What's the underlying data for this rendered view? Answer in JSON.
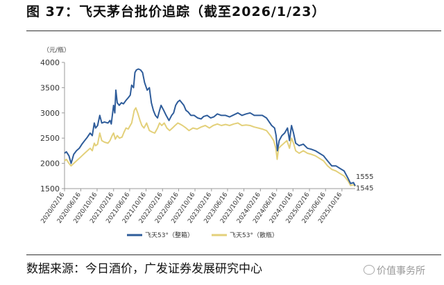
{
  "figure": {
    "title": "图  37：飞天茅台批价追踪（截至2026/1/23）",
    "source": "数据来源：今日酒价，广发证券发展研究中心",
    "watermark": "价值事务所"
  },
  "chart_data": {
    "type": "line",
    "title": "",
    "unit_label": "（元/瓶）",
    "xlabel": "",
    "ylabel": "",
    "ylim": [
      1500,
      4000
    ],
    "yticks": [
      1500,
      2000,
      2500,
      3000,
      3500,
      4000
    ],
    "xlim": [
      "2020-02-16",
      "2026-01-23"
    ],
    "x_tick_dates": [
      "2020-02-16",
      "2020-06-16",
      "2020-10-16",
      "2021-02-16",
      "2021-06-16",
      "2021-10-16",
      "2022-02-16",
      "2022-06-16",
      "2022-10-16",
      "2023-02-16",
      "2023-06-16",
      "2023-10-16",
      "2024-02-16",
      "2024-06-16",
      "2024-10-16",
      "2025-02-16",
      "2025-06-16",
      "2025-10-16"
    ],
    "x_tick_labels": [
      "2020/02/16",
      "2020/06/16",
      "2020/10/16",
      "2021/02/16",
      "2021/06/16",
      "2021/10/16",
      "2022/02/16",
      "2022/06/16",
      "2022/10/16",
      "2023/02/16",
      "2023/06/16",
      "2023/10/16",
      "2024/02/16",
      "2024/06/16",
      "2024/10/16",
      "2025/02/16",
      "2025/06/16",
      "2025/10/16"
    ],
    "legend_position": "bottom",
    "grid": false,
    "series": [
      {
        "name": "飞天53°（整箱）",
        "color": "#2E5C9A",
        "end_label": "1555",
        "points": [
          [
            "2020-02-16",
            2200
          ],
          [
            "2020-03-01",
            2230
          ],
          [
            "2020-03-20",
            2150
          ],
          [
            "2020-04-05",
            2000
          ],
          [
            "2020-04-25",
            2180
          ],
          [
            "2020-05-15",
            2250
          ],
          [
            "2020-06-05",
            2300
          ],
          [
            "2020-06-25",
            2380
          ],
          [
            "2020-07-15",
            2450
          ],
          [
            "2020-08-05",
            2520
          ],
          [
            "2020-08-25",
            2600
          ],
          [
            "2020-09-10",
            2550
          ],
          [
            "2020-09-25",
            2800
          ],
          [
            "2020-10-05",
            2700
          ],
          [
            "2020-10-20",
            2750
          ],
          [
            "2020-11-05",
            2950
          ],
          [
            "2020-11-20",
            2800
          ],
          [
            "2020-12-10",
            2820
          ],
          [
            "2021-01-05",
            2800
          ],
          [
            "2021-01-20",
            2850
          ],
          [
            "2021-01-30",
            2780
          ],
          [
            "2021-02-16",
            3150
          ],
          [
            "2021-02-25",
            3000
          ],
          [
            "2021-03-05",
            3450
          ],
          [
            "2021-03-15",
            3200
          ],
          [
            "2021-03-30",
            3150
          ],
          [
            "2021-04-15",
            3200
          ],
          [
            "2021-05-01",
            3180
          ],
          [
            "2021-05-20",
            3250
          ],
          [
            "2021-06-05",
            3300
          ],
          [
            "2021-06-20",
            3350
          ],
          [
            "2021-07-01",
            3550
          ],
          [
            "2021-07-15",
            3500
          ],
          [
            "2021-07-25",
            3800
          ],
          [
            "2021-08-05",
            3850
          ],
          [
            "2021-08-20",
            3870
          ],
          [
            "2021-09-05",
            3850
          ],
          [
            "2021-09-20",
            3800
          ],
          [
            "2021-10-05",
            3600
          ],
          [
            "2021-10-25",
            3450
          ],
          [
            "2021-11-10",
            3500
          ],
          [
            "2021-11-25",
            3200
          ],
          [
            "2021-12-10",
            3050
          ],
          [
            "2021-12-25",
            2950
          ],
          [
            "2022-01-10",
            2900
          ],
          [
            "2022-01-25",
            3050
          ],
          [
            "2022-02-05",
            3150
          ],
          [
            "2022-02-25",
            3050
          ],
          [
            "2022-03-15",
            2950
          ],
          [
            "2022-04-05",
            2850
          ],
          [
            "2022-04-25",
            2950
          ],
          [
            "2022-05-10",
            3000
          ],
          [
            "2022-05-25",
            3150
          ],
          [
            "2022-06-10",
            3220
          ],
          [
            "2022-06-25",
            3250
          ],
          [
            "2022-07-10",
            3200
          ],
          [
            "2022-07-25",
            3150
          ],
          [
            "2022-08-10",
            3050
          ],
          [
            "2022-08-25",
            3020
          ],
          [
            "2022-09-15",
            2950
          ],
          [
            "2022-10-10",
            2950
          ],
          [
            "2022-11-05",
            2900
          ],
          [
            "2022-12-01",
            2880
          ],
          [
            "2022-12-20",
            2930
          ],
          [
            "2023-01-15",
            2950
          ],
          [
            "2023-02-10",
            2900
          ],
          [
            "2023-03-05",
            2920
          ],
          [
            "2023-04-01",
            2980
          ],
          [
            "2023-05-01",
            2950
          ],
          [
            "2023-06-01",
            2950
          ],
          [
            "2023-07-01",
            2920
          ],
          [
            "2023-08-01",
            2960
          ],
          [
            "2023-09-01",
            3000
          ],
          [
            "2023-10-01",
            2950
          ],
          [
            "2023-11-01",
            2980
          ],
          [
            "2023-12-01",
            3000
          ],
          [
            "2024-01-01",
            2950
          ],
          [
            "2024-02-01",
            2950
          ],
          [
            "2024-03-01",
            2950
          ],
          [
            "2024-04-01",
            2900
          ],
          [
            "2024-05-10",
            2750
          ],
          [
            "2024-06-01",
            2700
          ],
          [
            "2024-06-12",
            2550
          ],
          [
            "2024-06-22",
            2250
          ],
          [
            "2024-07-05",
            2450
          ],
          [
            "2024-07-25",
            2550
          ],
          [
            "2024-08-15",
            2600
          ],
          [
            "2024-09-05",
            2700
          ],
          [
            "2024-09-20",
            2450
          ],
          [
            "2024-10-05",
            2750
          ],
          [
            "2024-10-20",
            2600
          ],
          [
            "2024-11-05",
            2400
          ],
          [
            "2024-12-01",
            2350
          ],
          [
            "2025-01-01",
            2380
          ],
          [
            "2025-02-01",
            2300
          ],
          [
            "2025-03-01",
            2280
          ],
          [
            "2025-04-01",
            2250
          ],
          [
            "2025-05-01",
            2200
          ],
          [
            "2025-06-01",
            2150
          ],
          [
            "2025-07-01",
            2050
          ],
          [
            "2025-08-01",
            1950
          ],
          [
            "2025-09-01",
            1950
          ],
          [
            "2025-10-01",
            1900
          ],
          [
            "2025-11-01",
            1850
          ],
          [
            "2025-12-01",
            1700
          ],
          [
            "2025-12-20",
            1600
          ],
          [
            "2026-01-10",
            1620
          ],
          [
            "2026-01-23",
            1555
          ]
        ]
      },
      {
        "name": "飞天53°（散瓶）",
        "color": "#E3D07A",
        "end_label": "1545",
        "points": [
          [
            "2020-02-16",
            2050
          ],
          [
            "2020-03-01",
            2080
          ],
          [
            "2020-03-20",
            2000
          ],
          [
            "2020-04-05",
            1950
          ],
          [
            "2020-04-25",
            2000
          ],
          [
            "2020-05-15",
            2050
          ],
          [
            "2020-06-05",
            2100
          ],
          [
            "2020-06-25",
            2150
          ],
          [
            "2020-07-15",
            2200
          ],
          [
            "2020-08-05",
            2250
          ],
          [
            "2020-08-25",
            2300
          ],
          [
            "2020-09-10",
            2250
          ],
          [
            "2020-09-25",
            2400
          ],
          [
            "2020-10-05",
            2350
          ],
          [
            "2020-10-20",
            2380
          ],
          [
            "2020-11-05",
            2600
          ],
          [
            "2020-11-20",
            2450
          ],
          [
            "2020-12-10",
            2420
          ],
          [
            "2021-01-05",
            2400
          ],
          [
            "2021-01-20",
            2450
          ],
          [
            "2021-02-05",
            2550
          ],
          [
            "2021-02-16",
            2600
          ],
          [
            "2021-03-01",
            2480
          ],
          [
            "2021-03-15",
            2550
          ],
          [
            "2021-04-01",
            2500
          ],
          [
            "2021-04-20",
            2520
          ],
          [
            "2021-05-05",
            2620
          ],
          [
            "2021-05-20",
            2700
          ],
          [
            "2021-06-05",
            2680
          ],
          [
            "2021-06-20",
            2750
          ],
          [
            "2021-07-01",
            2800
          ],
          [
            "2021-07-10",
            2920
          ],
          [
            "2021-07-20",
            3050
          ],
          [
            "2021-08-01",
            3100
          ],
          [
            "2021-08-15",
            3000
          ],
          [
            "2021-09-01",
            2850
          ],
          [
            "2021-09-15",
            2750
          ],
          [
            "2021-10-01",
            2700
          ],
          [
            "2021-10-20",
            2800
          ],
          [
            "2021-11-10",
            2650
          ],
          [
            "2021-12-01",
            2620
          ],
          [
            "2021-12-20",
            2600
          ],
          [
            "2022-01-10",
            2700
          ],
          [
            "2022-01-25",
            2800
          ],
          [
            "2022-02-10",
            2750
          ],
          [
            "2022-03-01",
            2800
          ],
          [
            "2022-03-20",
            2700
          ],
          [
            "2022-04-10",
            2650
          ],
          [
            "2022-05-01",
            2700
          ],
          [
            "2022-05-20",
            2750
          ],
          [
            "2022-06-10",
            2800
          ],
          [
            "2022-06-25",
            2780
          ],
          [
            "2022-07-15",
            2750
          ],
          [
            "2022-08-10",
            2700
          ],
          [
            "2022-09-01",
            2650
          ],
          [
            "2022-10-01",
            2700
          ],
          [
            "2022-11-01",
            2680
          ],
          [
            "2022-12-01",
            2720
          ],
          [
            "2023-01-01",
            2750
          ],
          [
            "2023-02-01",
            2700
          ],
          [
            "2023-03-01",
            2750
          ],
          [
            "2023-04-01",
            2780
          ],
          [
            "2023-05-01",
            2750
          ],
          [
            "2023-06-01",
            2770
          ],
          [
            "2023-07-01",
            2750
          ],
          [
            "2023-08-01",
            2780
          ],
          [
            "2023-09-01",
            2800
          ],
          [
            "2023-10-01",
            2750
          ],
          [
            "2023-11-01",
            2760
          ],
          [
            "2023-12-01",
            2750
          ],
          [
            "2024-01-01",
            2720
          ],
          [
            "2024-02-01",
            2700
          ],
          [
            "2024-03-01",
            2680
          ],
          [
            "2024-04-01",
            2650
          ],
          [
            "2024-05-01",
            2550
          ],
          [
            "2024-05-25",
            2450
          ],
          [
            "2024-06-10",
            2300
          ],
          [
            "2024-06-20",
            2080
          ],
          [
            "2024-07-01",
            2300
          ],
          [
            "2024-07-20",
            2350
          ],
          [
            "2024-08-10",
            2400
          ],
          [
            "2024-09-01",
            2450
          ],
          [
            "2024-09-20",
            2300
          ],
          [
            "2024-10-05",
            2500
          ],
          [
            "2024-10-20",
            2400
          ],
          [
            "2024-11-05",
            2250
          ],
          [
            "2024-12-01",
            2200
          ],
          [
            "2025-01-01",
            2250
          ],
          [
            "2025-02-01",
            2200
          ],
          [
            "2025-03-01",
            2180
          ],
          [
            "2025-04-01",
            2150
          ],
          [
            "2025-05-01",
            2100
          ],
          [
            "2025-06-01",
            2050
          ],
          [
            "2025-07-01",
            1950
          ],
          [
            "2025-08-01",
            1880
          ],
          [
            "2025-09-01",
            1850
          ],
          [
            "2025-10-01",
            1800
          ],
          [
            "2025-11-01",
            1750
          ],
          [
            "2025-12-01",
            1650
          ],
          [
            "2025-12-20",
            1560
          ],
          [
            "2026-01-10",
            1580
          ],
          [
            "2026-01-23",
            1545
          ]
        ]
      }
    ]
  }
}
